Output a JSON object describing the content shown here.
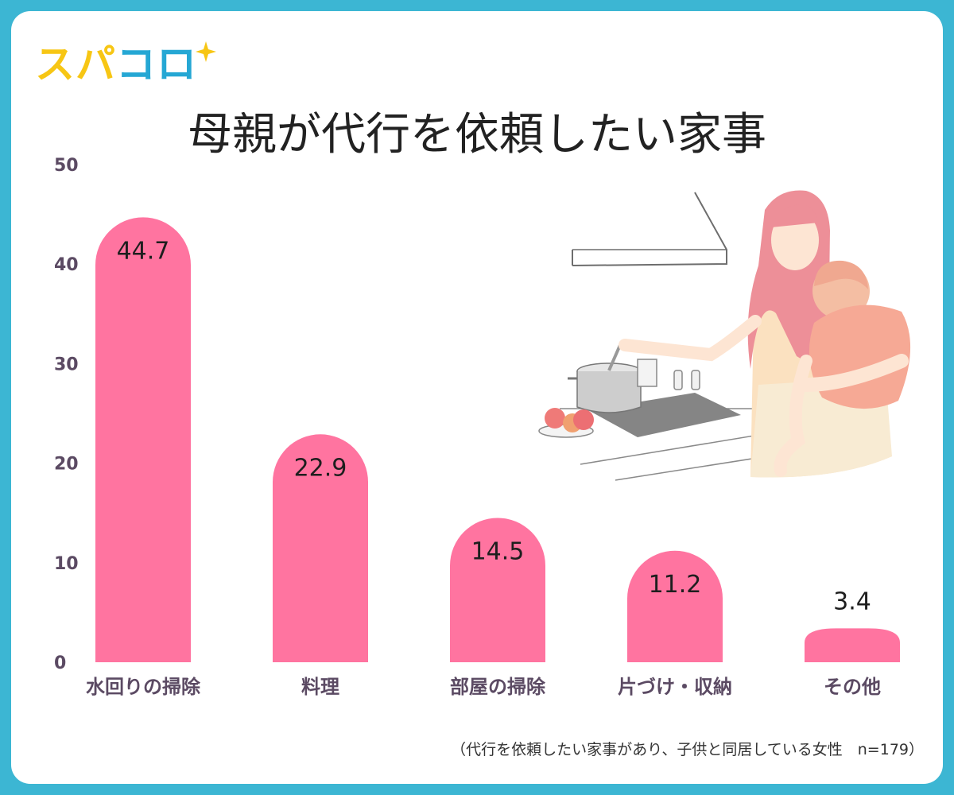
{
  "brand": {
    "part1": "スパ",
    "part2": "コロ"
  },
  "colors": {
    "bar": "#ff74a0",
    "axis_text": "#5b4a63",
    "frame": "#3cb6d3"
  },
  "chart_data": {
    "type": "bar",
    "title": "母親が代行を依頼したい家事",
    "categories": [
      "水回りの掃除",
      "料理",
      "部屋の掃除",
      "片づけ・収納",
      "その他"
    ],
    "values": [
      44.7,
      22.9,
      14.5,
      11.2,
      3.4
    ],
    "value_labels": [
      "44.7",
      "22.9",
      "14.5",
      "11.2",
      "3.4"
    ],
    "ylim": [
      0,
      50
    ],
    "yticks": [
      0,
      10,
      20,
      30,
      40,
      50
    ],
    "grid": false,
    "legend": "none"
  },
  "footnote": "（代行を依頼したい家事があり、子供と同居している女性　n=179）"
}
